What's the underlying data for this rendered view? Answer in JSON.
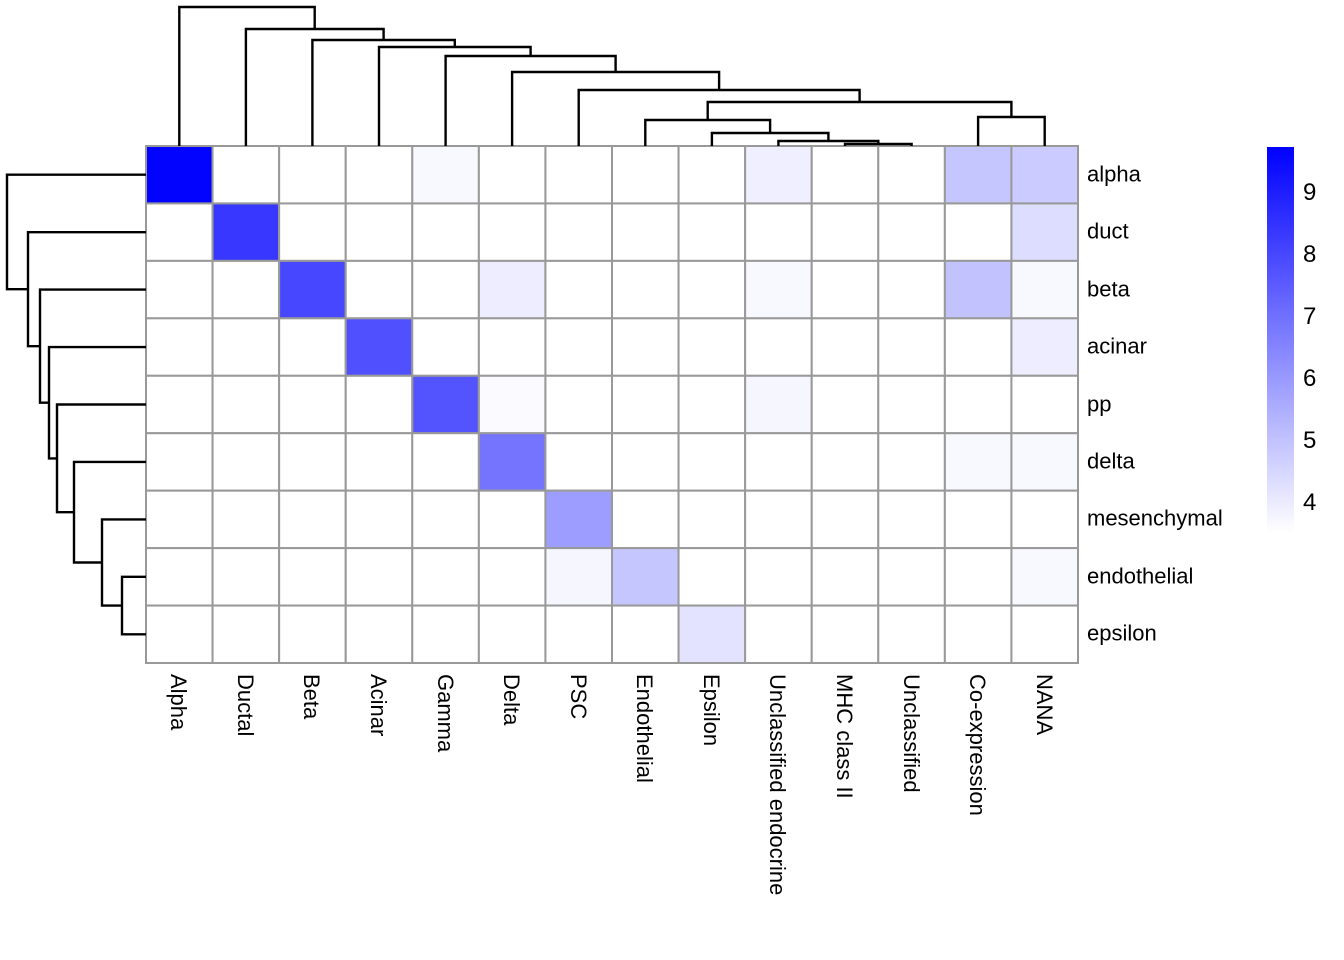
{
  "figure": {
    "kind": "clustered-heatmap-plot",
    "background": "#ffffff"
  },
  "chart_data": {
    "type": "heatmap",
    "title": "",
    "columns": [
      "Alpha",
      "Ductal",
      "Beta",
      "Acinar",
      "Gamma",
      "Delta",
      "PSC",
      "Endothelial",
      "Epsilon",
      "Unclassified endocrine",
      "MHC class II",
      "Unclassified",
      "Co-expression",
      "NANA"
    ],
    "rows": [
      "alpha",
      "duct",
      "beta",
      "acinar",
      "pp",
      "delta",
      "mesenchymal",
      "endothelial",
      "epsilon"
    ],
    "values": [
      [
        9.7,
        3.5,
        3.5,
        3.5,
        3.7,
        3.5,
        3.5,
        3.5,
        3.5,
        3.9,
        3.5,
        3.5,
        4.9,
        4.8
      ],
      [
        3.5,
        8.4,
        3.5,
        3.5,
        3.5,
        3.5,
        3.5,
        3.5,
        3.5,
        3.5,
        3.5,
        3.5,
        3.5,
        4.35
      ],
      [
        3.5,
        3.5,
        8.0,
        3.5,
        3.5,
        3.95,
        3.5,
        3.5,
        3.5,
        3.7,
        3.5,
        3.5,
        5.0,
        3.7
      ],
      [
        3.5,
        3.5,
        3.5,
        7.8,
        3.5,
        3.5,
        3.5,
        3.5,
        3.5,
        3.5,
        3.5,
        3.5,
        3.5,
        3.95
      ],
      [
        3.5,
        3.5,
        3.5,
        3.5,
        7.7,
        3.65,
        3.5,
        3.5,
        3.5,
        3.75,
        3.5,
        3.5,
        3.5,
        3.5
      ],
      [
        3.5,
        3.5,
        3.5,
        3.5,
        3.5,
        6.9,
        3.5,
        3.5,
        3.5,
        3.5,
        3.5,
        3.5,
        3.7,
        3.7
      ],
      [
        3.5,
        3.5,
        3.5,
        3.5,
        3.5,
        3.5,
        5.9,
        3.5,
        3.5,
        3.5,
        3.5,
        3.5,
        3.5,
        3.5
      ],
      [
        3.5,
        3.5,
        3.5,
        3.5,
        3.5,
        3.5,
        3.75,
        4.9,
        3.5,
        3.5,
        3.5,
        3.5,
        3.5,
        3.7
      ],
      [
        3.5,
        3.5,
        3.5,
        3.5,
        3.5,
        3.5,
        3.5,
        3.5,
        4.2,
        3.5,
        3.5,
        3.5,
        3.5,
        3.5
      ]
    ],
    "color_scale": {
      "min_value": 3.52,
      "max_value": 9.74,
      "min_color": "#FFFFFF",
      "max_color": "#0000FF"
    },
    "legend_ticks": [
      "9",
      "8",
      "7",
      "6",
      "5",
      "4"
    ],
    "legend_tick_values": [
      9,
      8,
      7,
      6,
      5,
      4
    ],
    "legend_position": "right",
    "grid_on": true,
    "grid_color": "#999999",
    "dendrogram_line_color": "#000000",
    "col_dendrogram": [
      7,
      0,
      [
        29,
        1,
        [
          40,
          2,
          [
            47,
            3,
            [
              56,
              4,
              [
                72,
                5,
                [
                  90,
                  6,
                  [
                    102,
                    [
                      120,
                      7,
                      [
                        133,
                        8,
                        [
                          141,
                          9,
                          [
                            144,
                            10,
                            11
                          ]
                        ]
                      ]
                    ],
                    [
                      117,
                      12,
                      13
                    ]
                  ]
                ]
              ]
            ]
          ]
        ]
      ]
    ],
    "row_dendrogram": [
      7,
      0,
      [
        28,
        1,
        [
          40,
          2,
          [
            49,
            3,
            [
              57,
              4,
              [
                74,
                5,
                [
                  102,
                  6,
                  [
                    122,
                    7,
                    8
                  ]
                ]
              ]
            ]
          ]
        ]
      ]
    ]
  }
}
